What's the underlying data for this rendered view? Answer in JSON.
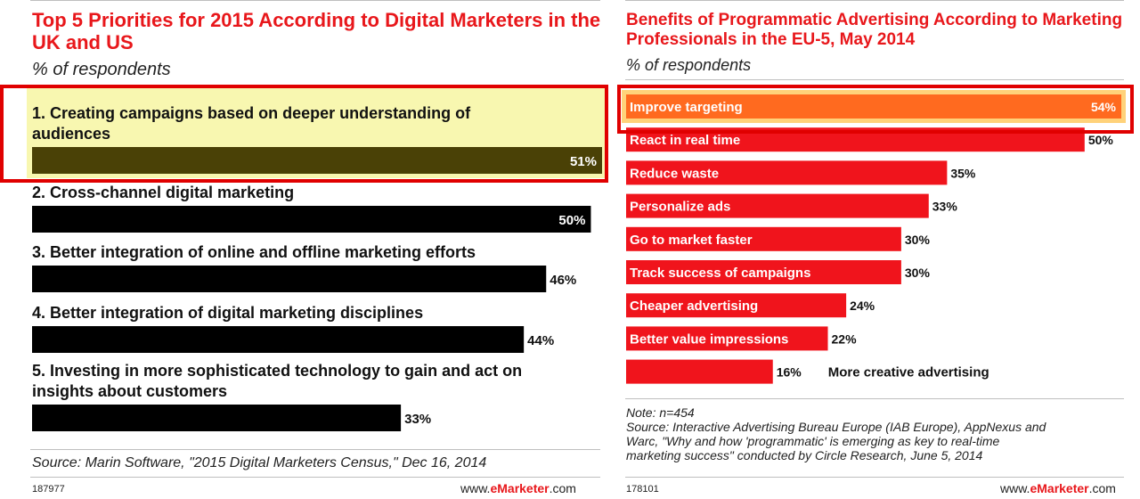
{
  "chart_data": [
    {
      "type": "bar",
      "title": "Top 5 Priorities for 2015 According to Digital Marketers in the UK and US",
      "subtitle": "% of respondents",
      "categories": [
        "1. Creating campaigns based on deeper understanding of audiences",
        "2. Cross-channel digital marketing",
        "3. Better integration of online and offline marketing efforts",
        "4. Better integration of digital marketing disciplines",
        "5. Investing in more sophisticated technology to gain and act on insights about customers"
      ],
      "category_lines": [
        [
          "1. Creating campaigns based on deeper understanding of",
          "audiences"
        ],
        [
          "2. Cross-channel digital marketing"
        ],
        [
          "3. Better integration of online and offline marketing efforts"
        ],
        [
          "4. Better integration of digital marketing disciplines"
        ],
        [
          "5. Investing in more sophisticated technology to gain and act on",
          "insights about customers"
        ]
      ],
      "values": [
        51,
        50,
        46,
        44,
        33
      ],
      "value_labels": [
        "51%",
        "50%",
        "46%",
        "44%",
        "33%"
      ],
      "highlighted_index": 0,
      "xlim": [
        0,
        51
      ],
      "source": "Source: Marin Software, \"2015 Digital Marketers Census,\" Dec 16, 2014",
      "chart_id": "187977",
      "colors": {
        "title": "#e8171b",
        "bar": "#000000",
        "highlight_bar": "#4a4106",
        "highlight_bg": "#f8f7b0",
        "box": "#e00000"
      }
    },
    {
      "type": "bar",
      "title": "Benefits of Programmatic Advertising According to Marketing Professionals in the EU-5, May 2014",
      "subtitle": "% of respondents",
      "categories": [
        "Improve targeting",
        "React in real time",
        "Reduce waste",
        "Personalize ads",
        "Go to market faster",
        "Track success of campaigns",
        "Cheaper advertising",
        "Better value impressions",
        "More creative advertising"
      ],
      "values": [
        54,
        50,
        35,
        33,
        30,
        30,
        24,
        22,
        16
      ],
      "value_labels": [
        "54%",
        "50%",
        "35%",
        "33%",
        "30%",
        "30%",
        "24%",
        "22%",
        "16%"
      ],
      "highlighted_index": 0,
      "xlim": [
        0,
        54
      ],
      "note": "Note: n=454",
      "source_lines": [
        "Source: Interactive Advertising Bureau Europe (IAB Europe), AppNexus and",
        "Warc, \"Why and how 'programmatic' is emerging as key to real-time",
        "marketing success\" conducted by Circle Research, June 5, 2014"
      ],
      "chart_id": "178101",
      "colors": {
        "title": "#e8171b",
        "bar": "#f0141c",
        "highlight_bar": "#ff6a1f",
        "highlight_bg": "#ffd27a",
        "box": "#e00000"
      }
    }
  ],
  "brand": {
    "prefix": "www.",
    "name": "eMarketer",
    "suffix": ".com"
  }
}
